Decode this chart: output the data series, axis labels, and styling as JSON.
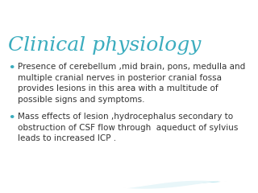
{
  "title": "Clinical physiology",
  "title_color": "#3aacbe",
  "title_fontsize": 18,
  "title_style": "italic",
  "title_font": "serif",
  "background_color": "#ffffff",
  "bullet_color": "#3aacbe",
  "text_color": "#333333",
  "bullet_points": [
    "Presence of cerebellum ,mid brain, pons, medulla and\nmultiple cranial nerves in posterior cranial fossa\nprovides lesions in this area with a multitude of\npossible signs and symptoms.",
    "Mass effects of lesion ,hydrocephalus secondary to\nobstruction of CSF flow through  aqueduct of sylvius\nleads to increased ICP ."
  ],
  "bullet_fontsize": 7.5,
  "fig_width": 3.2,
  "fig_height": 2.4,
  "dpi": 100
}
